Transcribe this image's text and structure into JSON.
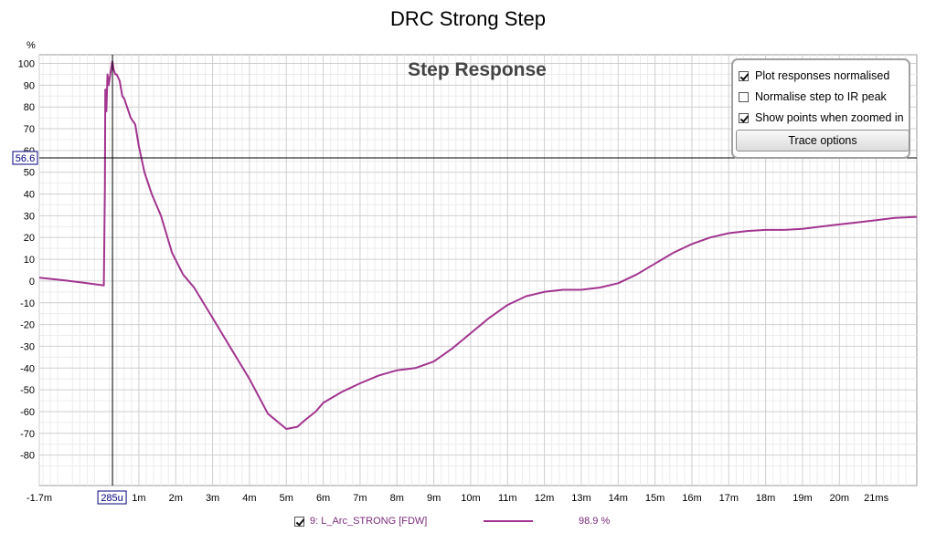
{
  "window_title": "DRC Strong Step",
  "chart_data": {
    "type": "line",
    "title": "Step Response",
    "y_unit": "%",
    "xlim": [
      -0.0017,
      0.0221
    ],
    "ylim": [
      -94,
      104
    ],
    "x_ticks": [
      {
        "v": -0.0017,
        "label": "-1.7m"
      },
      {
        "v": 0.001,
        "label": "1m"
      },
      {
        "v": 0.002,
        "label": "2m"
      },
      {
        "v": 0.003,
        "label": "3m"
      },
      {
        "v": 0.004,
        "label": "4m"
      },
      {
        "v": 0.005,
        "label": "5m"
      },
      {
        "v": 0.006,
        "label": "6m"
      },
      {
        "v": 0.007,
        "label": "7m"
      },
      {
        "v": 0.008,
        "label": "8m"
      },
      {
        "v": 0.009,
        "label": "9m"
      },
      {
        "v": 0.01,
        "label": "10m"
      },
      {
        "v": 0.011,
        "label": "11m"
      },
      {
        "v": 0.012,
        "label": "12m"
      },
      {
        "v": 0.013,
        "label": "13m"
      },
      {
        "v": 0.014,
        "label": "14m"
      },
      {
        "v": 0.015,
        "label": "15m"
      },
      {
        "v": 0.016,
        "label": "16m"
      },
      {
        "v": 0.017,
        "label": "17m"
      },
      {
        "v": 0.018,
        "label": "18m"
      },
      {
        "v": 0.019,
        "label": "19m"
      },
      {
        "v": 0.02,
        "label": "20m"
      },
      {
        "v": 0.021,
        "label": "21ms"
      }
    ],
    "y_ticks": [
      100,
      90,
      80,
      70,
      60,
      50,
      40,
      30,
      20,
      10,
      0,
      -10,
      -20,
      -30,
      -40,
      -50,
      -60,
      -70,
      -80
    ],
    "cursor": {
      "x": 0.000285,
      "x_label": "285u",
      "y": 56.6,
      "y_label": "56.6"
    },
    "grid": true,
    "series": [
      {
        "name": "9: L_Arc_STRONG [FDW]",
        "color": "#a2348f",
        "x": [
          -0.0017,
          -0.001,
          -0.0005,
          5e-05,
          8e-05,
          9e-05,
          0.00012,
          0.00015,
          0.00018,
          0.00021,
          0.00025,
          0.00028,
          0.00032,
          0.00036,
          0.0004,
          0.00048,
          0.00055,
          0.0006,
          0.00068,
          0.00078,
          0.0009,
          0.001,
          0.00115,
          0.00135,
          0.0016,
          0.0019,
          0.0022,
          0.0025,
          0.003,
          0.0035,
          0.004,
          0.0045,
          0.005,
          0.0053,
          0.0055,
          0.0058,
          0.006,
          0.0065,
          0.007,
          0.0075,
          0.008,
          0.0085,
          0.009,
          0.0095,
          0.01,
          0.0105,
          0.011,
          0.0115,
          0.012,
          0.0125,
          0.013,
          0.0135,
          0.014,
          0.0145,
          0.015,
          0.0155,
          0.016,
          0.0165,
          0.017,
          0.0175,
          0.018,
          0.0185,
          0.019,
          0.0195,
          0.02,
          0.0205,
          0.021,
          0.0215,
          0.0221
        ],
        "y": [
          1.5,
          0.3,
          -0.8,
          -2.0,
          45,
          88,
          78,
          95,
          90,
          93,
          98,
          101,
          97,
          95,
          95,
          92,
          85,
          84,
          80,
          75,
          72,
          62,
          50,
          40,
          30,
          13,
          3,
          -3,
          -17,
          -31,
          -45,
          -61,
          -68,
          -67,
          -64,
          -60,
          -56,
          -51,
          -47,
          -43.5,
          -41,
          -40,
          -37,
          -31,
          -24,
          -17,
          -11,
          -7,
          -5,
          -4,
          -4,
          -3,
          -1,
          3,
          8,
          13,
          17,
          20,
          22,
          23,
          23.5,
          23.5,
          24,
          25,
          26,
          27,
          28,
          29,
          29.5
        ]
      }
    ],
    "legend_entries": [
      {
        "label": "9: L_Arc_STRONG [FDW]",
        "checked": true,
        "value": "98.9 %"
      }
    ]
  },
  "options_panel": {
    "items": [
      {
        "label": "Plot responses normalised",
        "checked": true
      },
      {
        "label": "Normalise step to IR peak",
        "checked": false
      },
      {
        "label": "Show points when zoomed in",
        "checked": true
      }
    ],
    "button_label": "Trace options"
  }
}
